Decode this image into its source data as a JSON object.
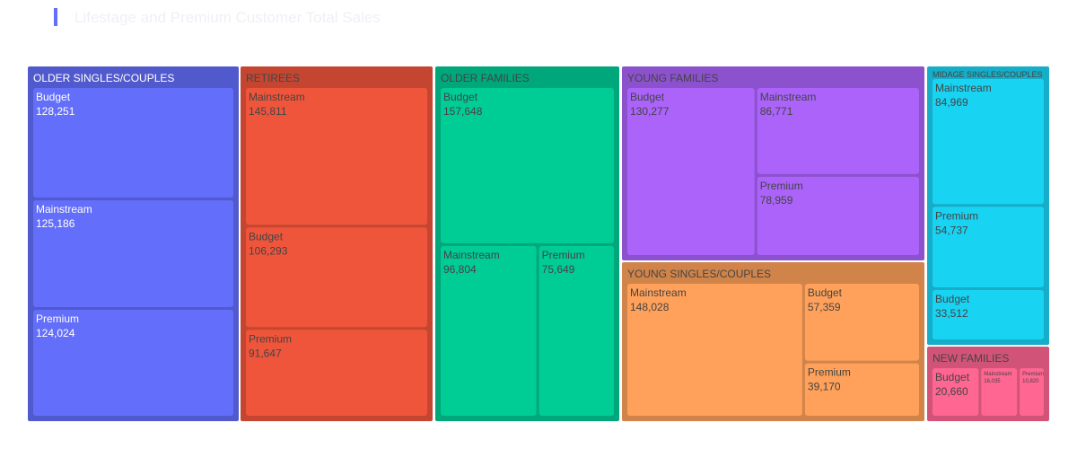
{
  "title": "Lifestage and Premium Customer Total Sales",
  "chart_data": {
    "type": "treemap",
    "title": "Lifestage and Premium Customer Total Sales",
    "groups": [
      {
        "name": "OLDER SINGLES/COUPLES",
        "color": "#636efa",
        "children": [
          {
            "name": "Budget",
            "value": 128251,
            "label": "128,251"
          },
          {
            "name": "Mainstream",
            "value": 125186,
            "label": "125,186"
          },
          {
            "name": "Premium",
            "value": 124024,
            "label": "124,024"
          }
        ]
      },
      {
        "name": "RETIREES",
        "color": "#ef553b",
        "children": [
          {
            "name": "Mainstream",
            "value": 145811,
            "label": "145,811"
          },
          {
            "name": "Budget",
            "value": 106293,
            "label": "106,293"
          },
          {
            "name": "Premium",
            "value": 91647,
            "label": "91,647"
          }
        ]
      },
      {
        "name": "OLDER FAMILIES",
        "color": "#00cc96",
        "children": [
          {
            "name": "Budget",
            "value": 157648,
            "label": "157,648"
          },
          {
            "name": "Mainstream",
            "value": 96804,
            "label": "96,804"
          },
          {
            "name": "Premium",
            "value": 75649,
            "label": "75,649"
          }
        ]
      },
      {
        "name": "YOUNG FAMILIES",
        "color": "#ab63fa",
        "children": [
          {
            "name": "Budget",
            "value": 130277,
            "label": "130,277"
          },
          {
            "name": "Mainstream",
            "value": 86771,
            "label": "86,771"
          },
          {
            "name": "Premium",
            "value": 78959,
            "label": "78,959"
          }
        ]
      },
      {
        "name": "YOUNG SINGLES/COUPLES",
        "color": "#ffa15a",
        "children": [
          {
            "name": "Mainstream",
            "value": 148028,
            "label": "148,028"
          },
          {
            "name": "Budget",
            "value": 57359,
            "label": "57,359"
          },
          {
            "name": "Premium",
            "value": 39170,
            "label": "39,170"
          }
        ]
      },
      {
        "name": "MIDAGE SINGLES/COUPLES",
        "color": "#19d3f3",
        "children": [
          {
            "name": "Mainstream",
            "value": 84969,
            "label": "84,969"
          },
          {
            "name": "Premium",
            "value": 54737,
            "label": "54,737"
          },
          {
            "name": "Budget",
            "value": 33512,
            "label": "33,512"
          }
        ]
      },
      {
        "name": "NEW FAMILIES",
        "color": "#ff6692",
        "children": [
          {
            "name": "Budget",
            "value": 20660,
            "label": "20,660"
          },
          {
            "name": "Mainstream",
            "value": 16035,
            "label": "16,035"
          },
          {
            "name": "Premium",
            "value": 10820,
            "label": "10,820"
          }
        ]
      }
    ]
  }
}
